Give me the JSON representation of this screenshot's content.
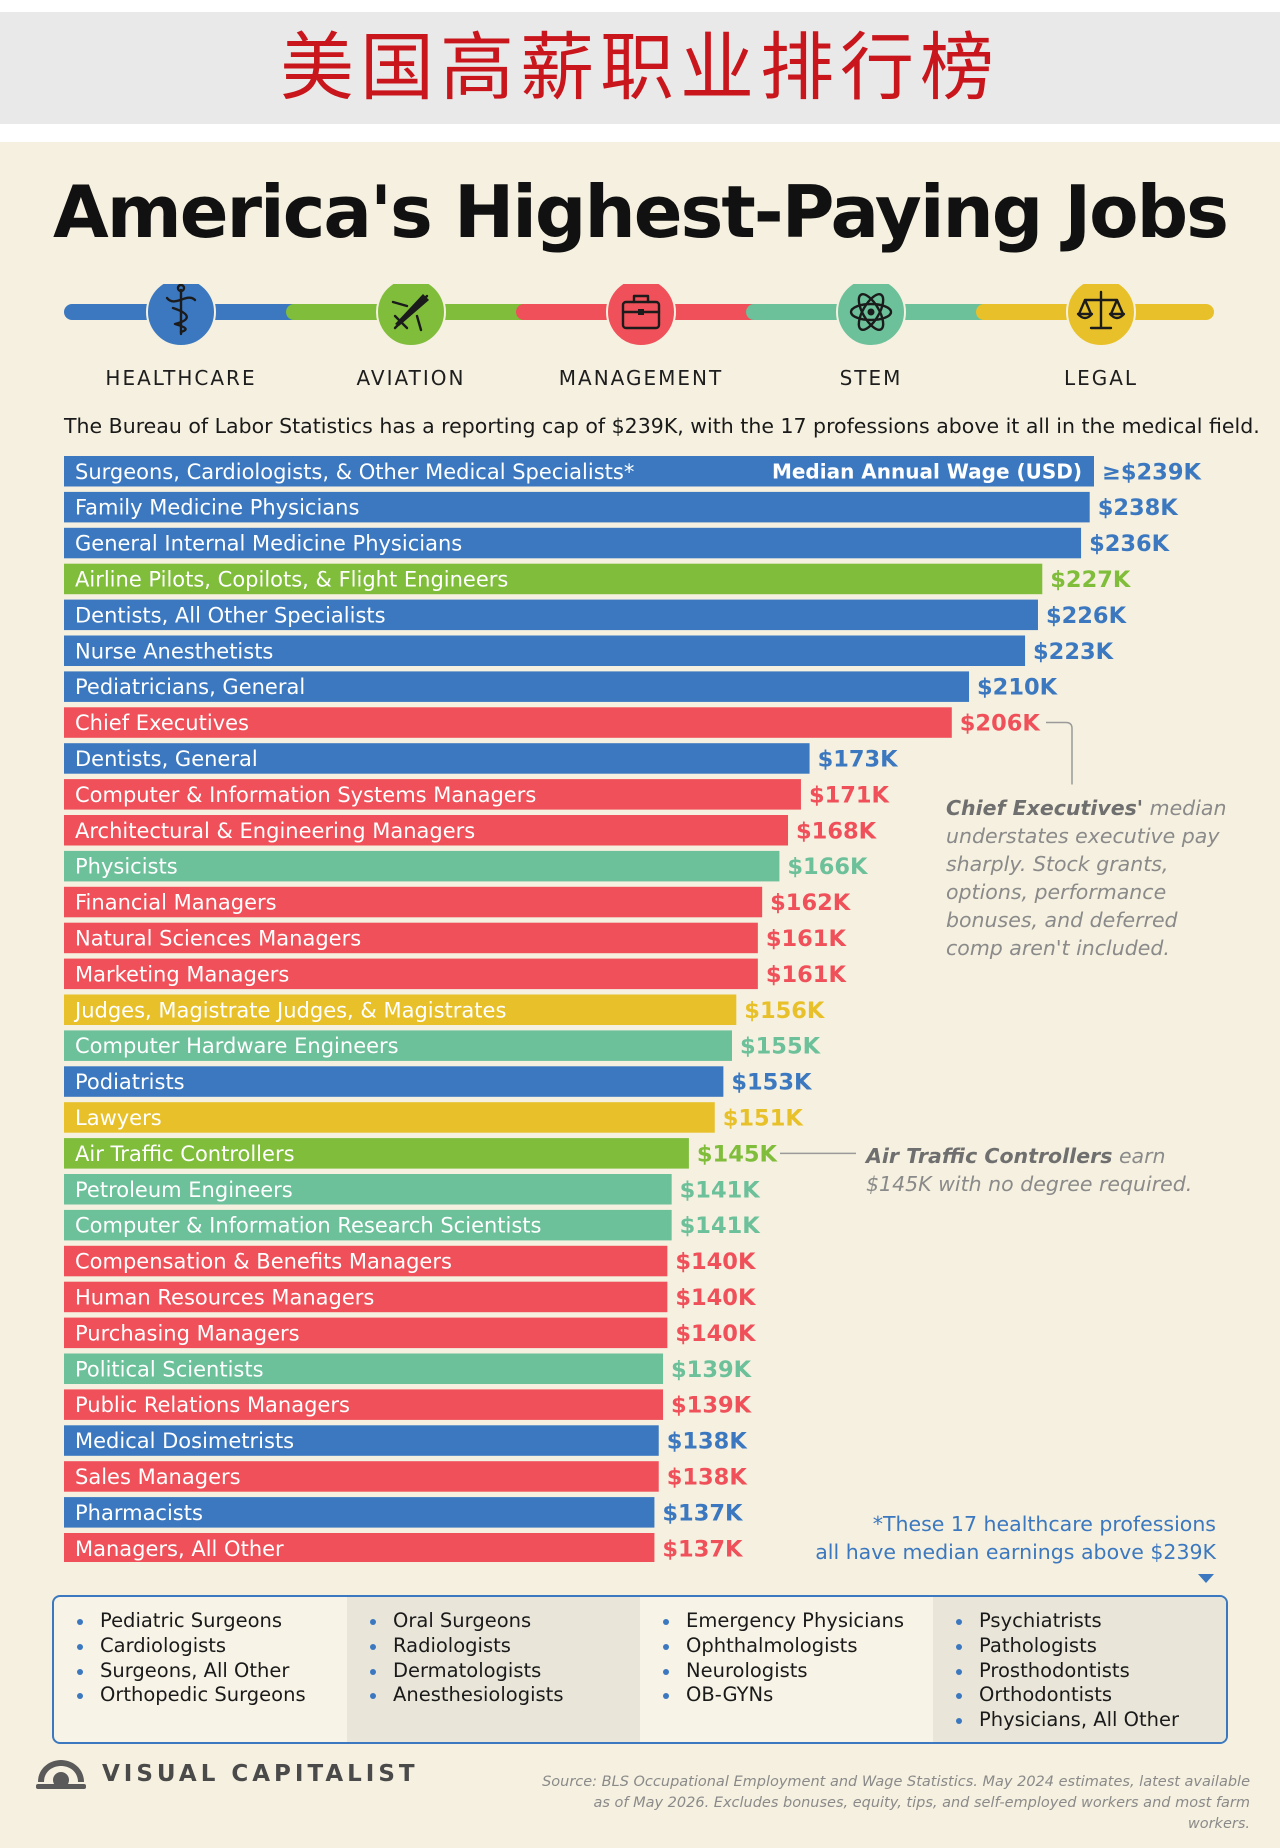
{
  "banner_title": "美国高薪职业排行榜",
  "title": "America's Highest-Paying Jobs",
  "categories": [
    {
      "name": "HEALTHCARE",
      "color": "#3b78c0",
      "icon": "caduceus-icon"
    },
    {
      "name": "AVIATION",
      "color": "#7fbd3b",
      "icon": "airplane-icon"
    },
    {
      "name": "MANAGEMENT",
      "color": "#ef5059",
      "icon": "briefcase-icon"
    },
    {
      "name": "STEM",
      "color": "#6cc09a",
      "icon": "atom-icon"
    },
    {
      "name": "LEGAL",
      "color": "#e8c12a",
      "icon": "scales-icon"
    }
  ],
  "subtitle": "The Bureau of Labor Statistics has a reporting cap of $239K, with the 17 professions above it all in the medical field.",
  "chart_data": {
    "type": "bar",
    "orientation": "horizontal",
    "legend_label": "Median Annual Wage (USD)",
    "unit": "thousands USD",
    "bars": [
      {
        "label": "Surgeons, Cardiologists, & Other Medical Specialists*",
        "value": 239,
        "display": "≥$239K",
        "category": "HEALTHCARE"
      },
      {
        "label": "Family Medicine Physicians",
        "value": 238,
        "display": "$238K",
        "category": "HEALTHCARE"
      },
      {
        "label": "General Internal Medicine Physicians",
        "value": 236,
        "display": "$236K",
        "category": "HEALTHCARE"
      },
      {
        "label": "Airline Pilots, Copilots, & Flight Engineers",
        "value": 227,
        "display": "$227K",
        "category": "AVIATION"
      },
      {
        "label": "Dentists, All Other Specialists",
        "value": 226,
        "display": "$226K",
        "category": "HEALTHCARE"
      },
      {
        "label": "Nurse Anesthetists",
        "value": 223,
        "display": "$223K",
        "category": "HEALTHCARE"
      },
      {
        "label": "Pediatricians, General",
        "value": 210,
        "display": "$210K",
        "category": "HEALTHCARE"
      },
      {
        "label": "Chief Executives",
        "value": 206,
        "display": "$206K",
        "category": "MANAGEMENT"
      },
      {
        "label": "Dentists, General",
        "value": 173,
        "display": "$173K",
        "category": "HEALTHCARE"
      },
      {
        "label": "Computer & Information Systems Managers",
        "value": 171,
        "display": "$171K",
        "category": "MANAGEMENT"
      },
      {
        "label": "Architectural & Engineering Managers",
        "value": 168,
        "display": "$168K",
        "category": "MANAGEMENT"
      },
      {
        "label": "Physicists",
        "value": 166,
        "display": "$166K",
        "category": "STEM"
      },
      {
        "label": "Financial Managers",
        "value": 162,
        "display": "$162K",
        "category": "MANAGEMENT"
      },
      {
        "label": "Natural Sciences Managers",
        "value": 161,
        "display": "$161K",
        "category": "MANAGEMENT"
      },
      {
        "label": "Marketing Managers",
        "value": 161,
        "display": "$161K",
        "category": "MANAGEMENT"
      },
      {
        "label": "Judges, Magistrate Judges, & Magistrates",
        "value": 156,
        "display": "$156K",
        "category": "LEGAL"
      },
      {
        "label": "Computer Hardware Engineers",
        "value": 155,
        "display": "$155K",
        "category": "STEM"
      },
      {
        "label": "Podiatrists",
        "value": 153,
        "display": "$153K",
        "category": "HEALTHCARE"
      },
      {
        "label": "Lawyers",
        "value": 151,
        "display": "$151K",
        "category": "LEGAL"
      },
      {
        "label": "Air Traffic Controllers",
        "value": 145,
        "display": "$145K",
        "category": "AVIATION"
      },
      {
        "label": "Petroleum Engineers",
        "value": 141,
        "display": "$141K",
        "category": "STEM"
      },
      {
        "label": "Computer & Information Research Scientists",
        "value": 141,
        "display": "$141K",
        "category": "STEM"
      },
      {
        "label": "Compensation & Benefits Managers",
        "value": 140,
        "display": "$140K",
        "category": "MANAGEMENT"
      },
      {
        "label": "Human Resources Managers",
        "value": 140,
        "display": "$140K",
        "category": "MANAGEMENT"
      },
      {
        "label": "Purchasing Managers",
        "value": 140,
        "display": "$140K",
        "category": "MANAGEMENT"
      },
      {
        "label": "Political Scientists",
        "value": 139,
        "display": "$139K",
        "category": "STEM"
      },
      {
        "label": "Public Relations Managers",
        "value": 139,
        "display": "$139K",
        "category": "MANAGEMENT"
      },
      {
        "label": "Medical Dosimetrists",
        "value": 138,
        "display": "$138K",
        "category": "HEALTHCARE"
      },
      {
        "label": "Sales Managers",
        "value": 138,
        "display": "$138K",
        "category": "MANAGEMENT"
      },
      {
        "label": "Pharmacists",
        "value": 137,
        "display": "$137K",
        "category": "HEALTHCARE"
      },
      {
        "label": "Managers, All Other",
        "value": 137,
        "display": "$137K",
        "category": "MANAGEMENT"
      }
    ]
  },
  "annotations": {
    "ceo": {
      "bold": "Chief Executives'",
      "text": " median understates executive pay sharply. Stock grants, options, performance bonuses, and deferred comp aren't included."
    },
    "atc": {
      "bold": "Air Traffic Controllers",
      "text": " earn $145K with no degree required."
    }
  },
  "footnote": [
    "*These 17 healthcare professions",
    "all have median earnings above $239K"
  ],
  "specialists": [
    [
      "Pediatric Surgeons",
      "Cardiologists",
      "Surgeons, All Other",
      "Orthopedic Surgeons"
    ],
    [
      "Oral Surgeons",
      "Radiologists",
      "Dermatologists",
      "Anesthesiologists"
    ],
    [
      "Emergency Physicians",
      "Ophthalmologists",
      "Neurologists",
      "OB-GYNs"
    ],
    [
      "Psychiatrists",
      "Pathologists",
      "Prosthodontists",
      "Orthodontists",
      "Physicians, All Other"
    ]
  ],
  "brand": "VISUAL CAPITALIST",
  "source": "Source: BLS Occupational Employment and Wage Statistics. May 2024 estimates, latest available as of May 2026. Excludes bonuses, equity, tips, and self-employed workers and most farm workers."
}
